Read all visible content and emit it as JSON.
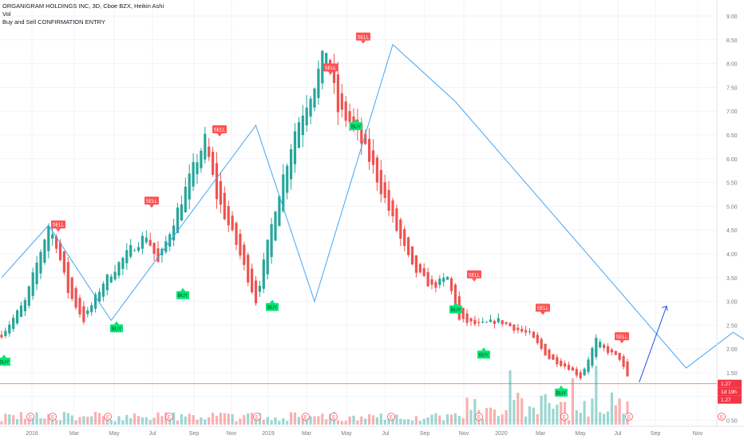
{
  "header": {
    "symbol_line": "ORGANIGRAM HOLDINGS INC, 3D, Cboe BZX, Heikin Ashi",
    "vol_label": "Vol",
    "indicator_label": "Buy and Sell CONFIRMATION ENTRY"
  },
  "colors": {
    "up": "#26a69a",
    "down": "#ef5350",
    "trend_line": "#42a5f5",
    "price_line": "#f44336",
    "buy_marker": "#00e676",
    "sell_marker": "#ff5252",
    "grid": "#f0f3fa"
  },
  "chart_data": {
    "type": "candlestick",
    "style": "Heikin Ashi",
    "interval": "3D",
    "y_axis": {
      "ticks": [
        9.0,
        8.5,
        8.0,
        7.5,
        7.0,
        6.5,
        6.0,
        5.5,
        5.0,
        4.5,
        4.0,
        3.5,
        3.0,
        2.5,
        2.0,
        1.5,
        1.0,
        0.5
      ],
      "tick_labels": [
        "9.00",
        "8.50",
        "8.00",
        "7.50",
        "7.00",
        "6.50",
        "6.00",
        "5.50",
        "5.00",
        "4.50",
        "4.00",
        "3.50",
        "3.00",
        "2.50",
        "2.00",
        "1.50",
        "1.00",
        "0.50"
      ]
    },
    "x_axis": {
      "tick_labels": [
        "2018",
        "Mar",
        "May",
        "Jul",
        "Sep",
        "Nov",
        "2019",
        "Mar",
        "May",
        "Jul",
        "Sep",
        "Nov",
        "2020",
        "Mar",
        "May",
        "Jul",
        "Sep",
        "Nov"
      ]
    },
    "price_path": [
      [
        0,
        2.3
      ],
      [
        6,
        3.0
      ],
      [
        12,
        4.6
      ],
      [
        14,
        4.2
      ],
      [
        17,
        3.2
      ],
      [
        21,
        2.6
      ],
      [
        26,
        3.4
      ],
      [
        33,
        4.1
      ],
      [
        37,
        4.4
      ],
      [
        40,
        3.8
      ],
      [
        44,
        4.7
      ],
      [
        49,
        5.8
      ],
      [
        52,
        6.4
      ],
      [
        55,
        5.2
      ],
      [
        60,
        4.2
      ],
      [
        65,
        3.0
      ],
      [
        70,
        5.0
      ],
      [
        75,
        6.6
      ],
      [
        80,
        7.6
      ],
      [
        83,
        8.3
      ],
      [
        86,
        7.0
      ],
      [
        90,
        6.7
      ],
      [
        95,
        5.8
      ],
      [
        100,
        4.7
      ],
      [
        105,
        3.7
      ],
      [
        110,
        3.3
      ],
      [
        114,
        3.5
      ],
      [
        117,
        2.6
      ],
      [
        122,
        2.5
      ],
      [
        127,
        2.6
      ],
      [
        132,
        2.4
      ],
      [
        135,
        2.3
      ],
      [
        140,
        1.8
      ],
      [
        145,
        1.6
      ],
      [
        148,
        1.4
      ],
      [
        152,
        2.2
      ],
      [
        154,
        2.0
      ],
      [
        158,
        1.8
      ],
      [
        160,
        1.4
      ]
    ],
    "trend_line_points": [
      [
        0,
        3.5
      ],
      [
        12,
        4.6
      ],
      [
        28,
        2.6
      ],
      [
        65,
        6.7
      ],
      [
        80,
        3.0
      ],
      [
        100,
        8.4
      ],
      [
        116,
        7.2
      ],
      [
        175,
        1.6
      ],
      [
        187,
        2.35
      ],
      [
        205,
        1.4
      ],
      [
        216,
        2.9
      ]
    ],
    "current_price": "1.27",
    "price_labels": [
      "1.27",
      "1d 19h",
      "1.27"
    ],
    "markers": [
      {
        "type": "SELL",
        "label": "SELL",
        "x": 73,
        "y": 4.5
      },
      {
        "type": "SELL",
        "label": "SELL",
        "x": 190,
        "y": 5.0
      },
      {
        "type": "SELL",
        "label": "SELL",
        "x": 275,
        "y": 6.5
      },
      {
        "type": "SELL",
        "label": "SELL",
        "x": 414,
        "y": 7.8
      },
      {
        "type": "SELL",
        "label": "SELL",
        "x": 455,
        "y": 8.45
      },
      {
        "type": "SELL",
        "label": "SELL",
        "x": 594,
        "y": 3.45
      },
      {
        "type": "SELL",
        "label": "SELL",
        "x": 680,
        "y": 2.75
      },
      {
        "type": "SELL",
        "label": "SELL",
        "x": 779,
        "y": 2.15
      },
      {
        "type": "BUY",
        "label": "BUY",
        "x": 5,
        "y": 1.85
      },
      {
        "type": "BUY",
        "label": "BUY",
        "x": 146,
        "y": 2.55
      },
      {
        "type": "BUY",
        "label": "BUY",
        "x": 229,
        "y": 3.25
      },
      {
        "type": "BUY",
        "label": "BUY",
        "x": 341,
        "y": 3.0
      },
      {
        "type": "BUY",
        "label": "BUY",
        "x": 446,
        "y": 6.8
      },
      {
        "type": "BUY",
        "label": "BUY",
        "x": 571,
        "y": 2.95
      },
      {
        "type": "BUY",
        "label": "BUY",
        "x": 606,
        "y": 2.0
      },
      {
        "type": "BUY",
        "label": "BUY",
        "x": 703,
        "y": 1.2
      }
    ],
    "earnings_markers": [
      "E",
      "E",
      "E",
      "E",
      "E",
      "E",
      "E",
      "E",
      "E",
      "E",
      "E",
      "E",
      "E",
      "E",
      "E",
      "E"
    ]
  }
}
